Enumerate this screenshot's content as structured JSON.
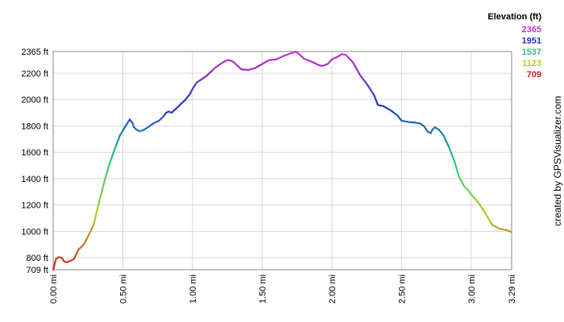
{
  "chart_data": {
    "type": "line",
    "title": "",
    "xlabel": "",
    "ylabel": "",
    "x_unit": "mi",
    "y_unit": "ft",
    "xlim": [
      0,
      3.29
    ],
    "ylim": [
      709,
      2365
    ],
    "grid": true,
    "x_ticks": [
      "0.00 mi",
      "0.50 mi",
      "1.00 mi",
      "1.50 mi",
      "2.00 mi",
      "2.50 mi",
      "3.00 mi",
      "3.29 mi"
    ],
    "x_tick_values": [
      0,
      0.5,
      1.0,
      1.5,
      2.0,
      2.5,
      3.0,
      3.29
    ],
    "y_ticks": [
      "709 ft",
      "800 ft",
      "1000 ft",
      "1200 ft",
      "1400 ft",
      "1600 ft",
      "1800 ft",
      "2000 ft",
      "2200 ft",
      "2365 ft"
    ],
    "y_tick_values": [
      709,
      800,
      1000,
      1200,
      1400,
      1600,
      1800,
      2000,
      2200,
      2365
    ],
    "legend": {
      "title": "Elevation (ft)",
      "placement": "top-right",
      "entries": [
        {
          "label": "2365",
          "color": "#cc33cc"
        },
        {
          "label": "1951",
          "color": "#2233cc"
        },
        {
          "label": "1537",
          "color": "#22cc88"
        },
        {
          "label": "1123",
          "color": "#bbcc22"
        },
        {
          "label": "709",
          "color": "#cc2222"
        }
      ]
    },
    "credit": "created by GPSVisualizer.com",
    "series": [
      {
        "x": [
          0.0,
          0.02,
          0.04,
          0.06,
          0.08,
          0.1,
          0.15,
          0.18,
          0.2,
          0.22,
          0.25,
          0.29,
          0.32,
          0.36,
          0.4,
          0.44,
          0.48,
          0.52,
          0.55,
          0.57,
          0.58,
          0.6,
          0.62,
          0.65,
          0.68,
          0.72,
          0.76,
          0.79,
          0.81,
          0.83,
          0.85,
          0.87,
          0.9,
          0.95,
          0.98,
          1.0,
          1.03,
          1.06,
          1.1,
          1.13,
          1.16,
          1.2,
          1.23,
          1.25,
          1.28,
          1.3,
          1.33,
          1.35,
          1.4,
          1.45,
          1.5,
          1.55,
          1.6,
          1.65,
          1.7,
          1.73,
          1.74,
          1.76,
          1.78,
          1.8,
          1.85,
          1.9,
          1.93,
          1.97,
          2.0,
          2.05,
          2.07,
          2.1,
          2.15,
          2.2,
          2.25,
          2.3,
          2.33,
          2.37,
          2.42,
          2.47,
          2.5,
          2.55,
          2.6,
          2.63,
          2.66,
          2.69,
          2.71,
          2.72,
          2.74,
          2.77,
          2.8,
          2.84,
          2.88,
          2.91,
          2.95,
          2.98,
          3.0,
          3.05,
          3.1,
          3.15,
          3.2,
          3.25,
          3.29
        ],
        "y": [
          709,
          790,
          805,
          800,
          770,
          765,
          790,
          860,
          880,
          900,
          960,
          1050,
          1180,
          1350,
          1500,
          1620,
          1730,
          1800,
          1850,
          1820,
          1790,
          1770,
          1760,
          1770,
          1790,
          1820,
          1840,
          1870,
          1900,
          1910,
          1900,
          1920,
          1950,
          2000,
          2040,
          2080,
          2130,
          2150,
          2180,
          2210,
          2240,
          2270,
          2290,
          2300,
          2295,
          2280,
          2250,
          2230,
          2225,
          2240,
          2270,
          2300,
          2305,
          2330,
          2350,
          2360,
          2365,
          2350,
          2330,
          2310,
          2290,
          2265,
          2255,
          2270,
          2305,
          2330,
          2345,
          2340,
          2285,
          2190,
          2120,
          2040,
          1960,
          1950,
          1920,
          1880,
          1840,
          1830,
          1825,
          1820,
          1800,
          1755,
          1745,
          1770,
          1790,
          1770,
          1730,
          1640,
          1530,
          1420,
          1340,
          1310,
          1280,
          1220,
          1140,
          1050,
          1020,
          1010,
          995
        ]
      }
    ]
  }
}
